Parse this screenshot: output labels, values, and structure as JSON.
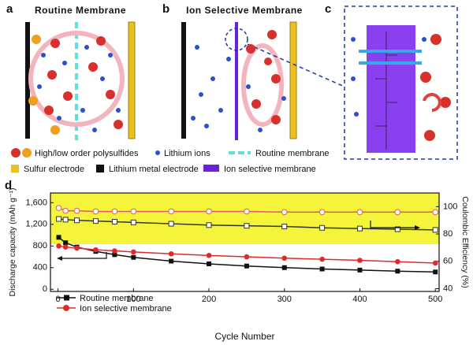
{
  "figure": {
    "panel_a": {
      "label": "a",
      "title": "Routine Membrane"
    },
    "panel_b": {
      "label": "b",
      "title": "Ion Selective Membrane"
    },
    "panel_c": {
      "label": "c"
    },
    "legend": [
      "High/low order polysulfides",
      "Lithium ions",
      "Routine membrane",
      "Sulfur electrode",
      "Lithium metal electrode",
      "Ion selective membrane"
    ]
  },
  "chart_data": {
    "type": "line",
    "panel_label": "d",
    "x_label": "Cycle Number",
    "y_label": "Discharge capacity (mAh g⁻¹)",
    "y2_label": "Coulombic Efficiency (%)",
    "x": [
      1,
      10,
      25,
      50,
      75,
      100,
      150,
      200,
      250,
      300,
      350,
      400,
      450,
      500
    ],
    "series": [
      {
        "name": "Routine membrane",
        "color": "#111111",
        "marker": "square",
        "values": [
          960,
          860,
          780,
          700,
          640,
          590,
          520,
          470,
          430,
          400,
          375,
          355,
          335,
          320
        ]
      },
      {
        "name": "Ion selective membrane",
        "color": "#e02a2a",
        "marker": "circle",
        "values": [
          800,
          780,
          760,
          730,
          710,
          690,
          655,
          625,
          600,
          575,
          555,
          535,
          510,
          485
        ]
      },
      {
        "color": "#333333",
        "marker": "square-open",
        "axis": "y2",
        "values": [
          91,
          90.5,
          90,
          89.5,
          89,
          88.5,
          87.5,
          86.5,
          86,
          85.5,
          84.5,
          84,
          83.5,
          83
        ]
      },
      {
        "color": "#e05a6a",
        "marker": "circle-open",
        "axis": "y2",
        "values": [
          99,
          97,
          97,
          96.5,
          96.5,
          96.5,
          96.5,
          96.5,
          96.5,
          96,
          96,
          96,
          96,
          96
        ]
      }
    ],
    "xlim": [
      -10,
      505
    ],
    "xticks": [
      0,
      100,
      200,
      300,
      400,
      500
    ],
    "ylim": [
      -40,
      1780
    ],
    "yticks": [
      0,
      400,
      800,
      {
        "value": 1200,
        "label": "1,200"
      },
      {
        "value": 1600,
        "label": "1,600"
      }
    ],
    "y2lim": [
      38,
      110
    ],
    "y2ticks": [
      40,
      60,
      80,
      100
    ],
    "legend_position": "lower left"
  }
}
